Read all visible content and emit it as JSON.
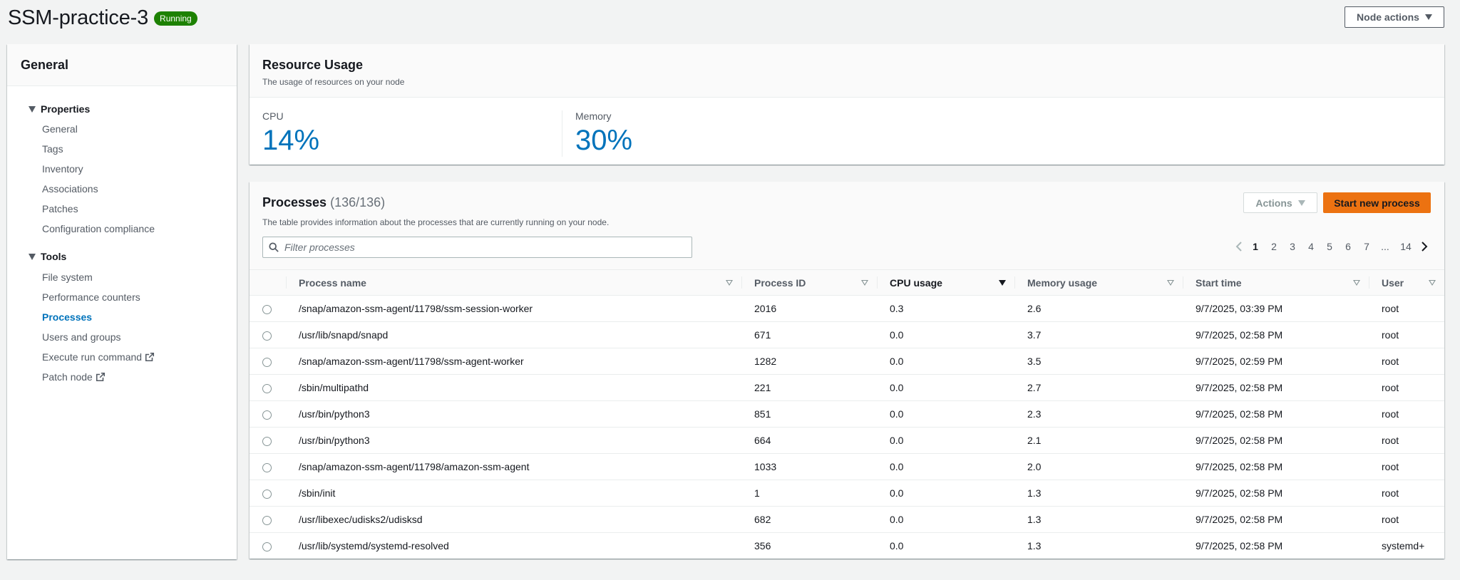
{
  "header": {
    "title": "SSM-practice-3",
    "status": "Running",
    "node_actions_label": "Node actions"
  },
  "sidebar": {
    "title": "General",
    "groups": [
      {
        "label": "Properties",
        "items": [
          "General",
          "Tags",
          "Inventory",
          "Associations",
          "Patches",
          "Configuration compliance"
        ]
      },
      {
        "label": "Tools",
        "items": [
          "File system",
          "Performance counters",
          "Processes",
          "Users and groups",
          "Execute run command",
          "Patch node"
        ]
      }
    ],
    "active_item": "Processes"
  },
  "resource_usage": {
    "title": "Resource Usage",
    "subtitle": "The usage of resources on your node",
    "cpu_label": "CPU",
    "cpu_value": "14%",
    "memory_label": "Memory",
    "memory_value": "30%"
  },
  "processes": {
    "title": "Processes",
    "count": "(136/136)",
    "description": "The table provides information about the processes that are currently running on your node.",
    "actions_label": "Actions",
    "start_label": "Start new process",
    "filter_placeholder": "Filter processes",
    "pages": [
      "1",
      "2",
      "3",
      "4",
      "5",
      "6",
      "7",
      "...",
      "14"
    ],
    "current_page": "1",
    "columns": [
      "Process name",
      "Process ID",
      "CPU usage",
      "Memory usage",
      "Start time",
      "User"
    ],
    "sorted_column": "CPU usage",
    "rows": [
      {
        "name": "/snap/amazon-ssm-agent/11798/ssm-session-worker",
        "pid": "2016",
        "cpu": "0.3",
        "mem": "2.6",
        "start": "9/7/2025, 03:39 PM",
        "user": "root"
      },
      {
        "name": "/usr/lib/snapd/snapd",
        "pid": "671",
        "cpu": "0.0",
        "mem": "3.7",
        "start": "9/7/2025, 02:58 PM",
        "user": "root"
      },
      {
        "name": "/snap/amazon-ssm-agent/11798/ssm-agent-worker",
        "pid": "1282",
        "cpu": "0.0",
        "mem": "3.5",
        "start": "9/7/2025, 02:59 PM",
        "user": "root"
      },
      {
        "name": "/sbin/multipathd",
        "pid": "221",
        "cpu": "0.0",
        "mem": "2.7",
        "start": "9/7/2025, 02:58 PM",
        "user": "root"
      },
      {
        "name": "/usr/bin/python3",
        "pid": "851",
        "cpu": "0.0",
        "mem": "2.3",
        "start": "9/7/2025, 02:58 PM",
        "user": "root"
      },
      {
        "name": "/usr/bin/python3",
        "pid": "664",
        "cpu": "0.0",
        "mem": "2.1",
        "start": "9/7/2025, 02:58 PM",
        "user": "root"
      },
      {
        "name": "/snap/amazon-ssm-agent/11798/amazon-ssm-agent",
        "pid": "1033",
        "cpu": "0.0",
        "mem": "2.0",
        "start": "9/7/2025, 02:58 PM",
        "user": "root"
      },
      {
        "name": "/sbin/init",
        "pid": "1",
        "cpu": "0.0",
        "mem": "1.3",
        "start": "9/7/2025, 02:58 PM",
        "user": "root"
      },
      {
        "name": "/usr/libexec/udisks2/udisksd",
        "pid": "682",
        "cpu": "0.0",
        "mem": "1.3",
        "start": "9/7/2025, 02:58 PM",
        "user": "root"
      },
      {
        "name": "/usr/lib/systemd/systemd-resolved",
        "pid": "356",
        "cpu": "0.0",
        "mem": "1.3",
        "start": "9/7/2025, 02:58 PM",
        "user": "systemd+"
      }
    ]
  },
  "colors": {
    "accent": "#0073bb",
    "primary_button": "#ec7211",
    "running_badge": "#1d8102"
  },
  "icons": {
    "filter": "search-icon",
    "external": "external-link-icon",
    "group_toggle": "caret-down-icon"
  }
}
